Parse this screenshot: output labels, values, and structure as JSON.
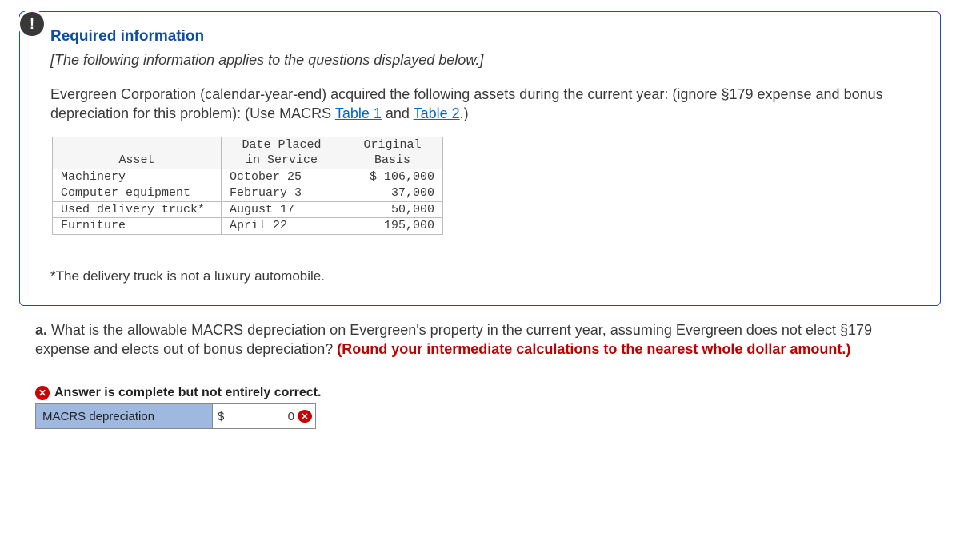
{
  "badge_symbol": "!",
  "heading": "Required information",
  "italic_line": "[The following information applies to the questions displayed below.]",
  "intro": {
    "pre": "Evergreen Corporation (calendar-year-end) acquired the following assets during the current year: (ignore §179 expense and bonus depreciation for this problem): (Use MACRS ",
    "link1": "Table 1",
    "mid": " and ",
    "link2": "Table 2",
    "post": ".)"
  },
  "asset_table": {
    "headers": {
      "asset": "Asset",
      "date_line1": "Date Placed",
      "date_line2": "in Service",
      "basis_line1": "Original",
      "basis_line2": "Basis"
    },
    "rows": [
      {
        "asset": "Machinery",
        "date": "October 25",
        "basis": "$ 106,000"
      },
      {
        "asset": "Computer equipment",
        "date": "February 3",
        "basis": "37,000"
      },
      {
        "asset": "Used delivery truck*",
        "date": "August 17",
        "basis": "50,000"
      },
      {
        "asset": "Furniture",
        "date": "April 22",
        "basis": "195,000"
      }
    ]
  },
  "footnote": "*The delivery truck is not a luxury automobile.",
  "question": {
    "part": "a.",
    "body": " What is the allowable MACRS depreciation on Evergreen's property in the current year, assuming Evergreen does not elect §179 expense and elects out of bonus depreciation? ",
    "instr": "(Round your intermediate calculations to the nearest whole dollar amount.)"
  },
  "status": {
    "text": "Answer is complete but not entirely correct."
  },
  "answer_row": {
    "label": "MACRS depreciation",
    "currency": "$",
    "value": "0"
  },
  "colors": {
    "border": "#1a4eb0",
    "link": "#0066cc",
    "error": "#cc0000",
    "cell_bg": "#9fb8e0"
  }
}
